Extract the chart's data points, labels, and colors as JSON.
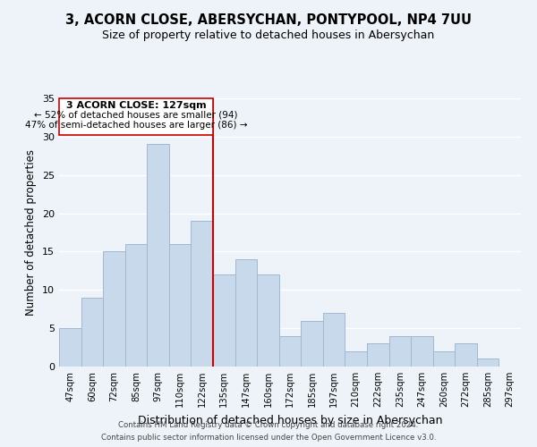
{
  "title_line1": "3, ACORN CLOSE, ABERSYCHAN, PONTYPOOL, NP4 7UU",
  "title_line2": "Size of property relative to detached houses in Abersychan",
  "xlabel": "Distribution of detached houses by size in Abersychan",
  "ylabel": "Number of detached properties",
  "bar_labels": [
    "47sqm",
    "60sqm",
    "72sqm",
    "85sqm",
    "97sqm",
    "110sqm",
    "122sqm",
    "135sqm",
    "147sqm",
    "160sqm",
    "172sqm",
    "185sqm",
    "197sqm",
    "210sqm",
    "222sqm",
    "235sqm",
    "247sqm",
    "260sqm",
    "272sqm",
    "285sqm",
    "297sqm"
  ],
  "bar_values": [
    5,
    9,
    15,
    16,
    29,
    16,
    19,
    12,
    14,
    12,
    4,
    6,
    7,
    2,
    3,
    4,
    4,
    2,
    3,
    1,
    0
  ],
  "bar_color": "#c8d9eb",
  "bar_edge_color": "#a0b8d0",
  "vline_index": 6.5,
  "subject_line_label": "3 ACORN CLOSE: 127sqm",
  "annotation_line1": "← 52% of detached houses are smaller (94)",
  "annotation_line2": "47% of semi-detached houses are larger (86) →",
  "vline_color": "#cc0000",
  "ylim": [
    0,
    35
  ],
  "yticks": [
    0,
    5,
    10,
    15,
    20,
    25,
    30,
    35
  ],
  "box_color": "#cc0000",
  "footer_line1": "Contains HM Land Registry data © Crown copyright and database right 2024.",
  "footer_line2": "Contains public sector information licensed under the Open Government Licence v3.0.",
  "bg_color": "#eef3f9"
}
